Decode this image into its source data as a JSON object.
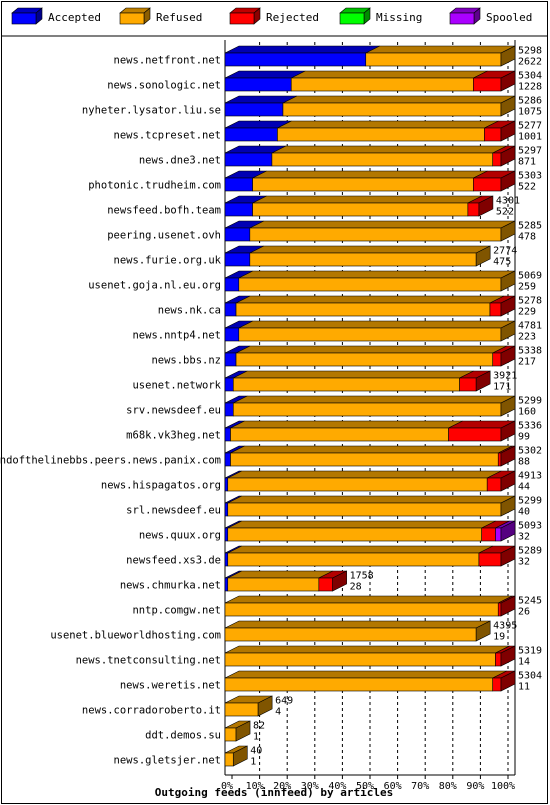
{
  "chart_data": {
    "type": "bar",
    "orientation": "horizontal",
    "stacked": true,
    "style": "3d",
    "title": "Outgoing feeds (innfeed) by articles",
    "xlim": [
      0,
      100
    ],
    "x_ticks": [
      "0%",
      "10%",
      "20%",
      "30%",
      "40%",
      "50%",
      "60%",
      "70%",
      "80%",
      "90%",
      "100%"
    ],
    "grid": true,
    "legend_position": "top",
    "legend": [
      {
        "name": "Accepted",
        "color": "#0000ff"
      },
      {
        "name": "Refused",
        "color": "#ffaa00"
      },
      {
        "name": "Rejected",
        "color": "#ff0000"
      },
      {
        "name": "Missing",
        "color": "#00ff00"
      },
      {
        "name": "Spooled",
        "color": "#aa00ff"
      }
    ],
    "series_colors": [
      "#0000ff",
      "#ffaa00",
      "#ff0000",
      "#00ff00",
      "#aa00ff"
    ],
    "categories": [
      "news.netfront.net",
      "news.sonologic.net",
      "nyheter.lysator.liu.se",
      "news.tcpreset.net",
      "news.dne3.net",
      "photonic.trudheim.com",
      "newsfeed.bofh.team",
      "peering.usenet.ovh",
      "news.furie.org.uk",
      "usenet.goja.nl.eu.org",
      "news.nk.ca",
      "news.nntp4.net",
      "news.bbs.nz",
      "usenet.network",
      "srv.newsdeef.eu",
      "m68k.vk3heg.net",
      "endofthelinebbs.peers.news.panix.com",
      "news.hispagatos.org",
      "srl.newsdeef.eu",
      "news.quux.org",
      "newsfeed.xs3.de",
      "news.chmurka.net",
      "nntp.comgw.net",
      "usenet.blueworldhosting.com",
      "news.tnetconsulting.net",
      "news.weretis.net",
      "news.corradoroberto.it",
      "ddt.demos.su",
      "news.gletsjer.net"
    ],
    "offered": [
      5298,
      5304,
      5286,
      5277,
      5297,
      5303,
      4301,
      5285,
      2774,
      5069,
      5278,
      4781,
      5338,
      3921,
      5299,
      5336,
      5302,
      4913,
      5299,
      5093,
      5289,
      1758,
      5245,
      4395,
      5319,
      5304,
      649,
      82,
      40
    ],
    "accepted": [
      2622,
      1228,
      1075,
      1001,
      871,
      522,
      522,
      478,
      475,
      259,
      229,
      223,
      217,
      171,
      160,
      99,
      88,
      44,
      40,
      32,
      32,
      28,
      26,
      19,
      14,
      11,
      4,
      1,
      1
    ],
    "segments": [
      [
        51,
        49,
        0,
        0,
        0
      ],
      [
        24,
        66,
        10,
        0,
        0
      ],
      [
        21,
        79,
        0,
        0,
        0
      ],
      [
        19,
        75,
        6,
        0,
        0
      ],
      [
        17,
        80,
        3,
        0,
        0
      ],
      [
        10,
        80,
        10,
        0,
        0
      ],
      [
        10,
        78,
        4,
        0,
        0
      ],
      [
        9,
        91,
        0,
        0,
        0
      ],
      [
        9,
        82,
        0,
        0,
        0
      ],
      [
        5,
        95,
        0,
        0,
        0
      ],
      [
        4,
        92,
        4,
        0,
        0
      ],
      [
        5,
        95,
        0,
        0,
        0
      ],
      [
        4,
        93,
        3,
        0,
        0
      ],
      [
        3,
        82,
        6,
        0,
        0
      ],
      [
        3,
        97,
        0,
        0,
        0
      ],
      [
        2,
        79,
        19,
        0,
        0
      ],
      [
        2,
        97,
        1,
        0,
        0
      ],
      [
        1,
        94,
        5,
        0,
        0
      ],
      [
        1,
        99,
        0,
        0,
        0
      ],
      [
        1,
        92,
        5,
        0,
        2
      ],
      [
        1,
        91,
        8,
        0,
        0
      ],
      [
        1,
        33,
        5,
        0,
        0
      ],
      [
        0,
        99,
        1,
        0,
        0
      ],
      [
        0,
        91,
        0,
        0,
        0
      ],
      [
        0,
        98,
        2,
        0,
        0
      ],
      [
        0,
        97,
        3,
        0,
        0
      ],
      [
        0,
        12,
        0,
        0,
        0
      ],
      [
        0,
        4,
        0,
        0,
        0
      ],
      [
        0,
        3,
        0,
        0,
        0
      ]
    ]
  }
}
